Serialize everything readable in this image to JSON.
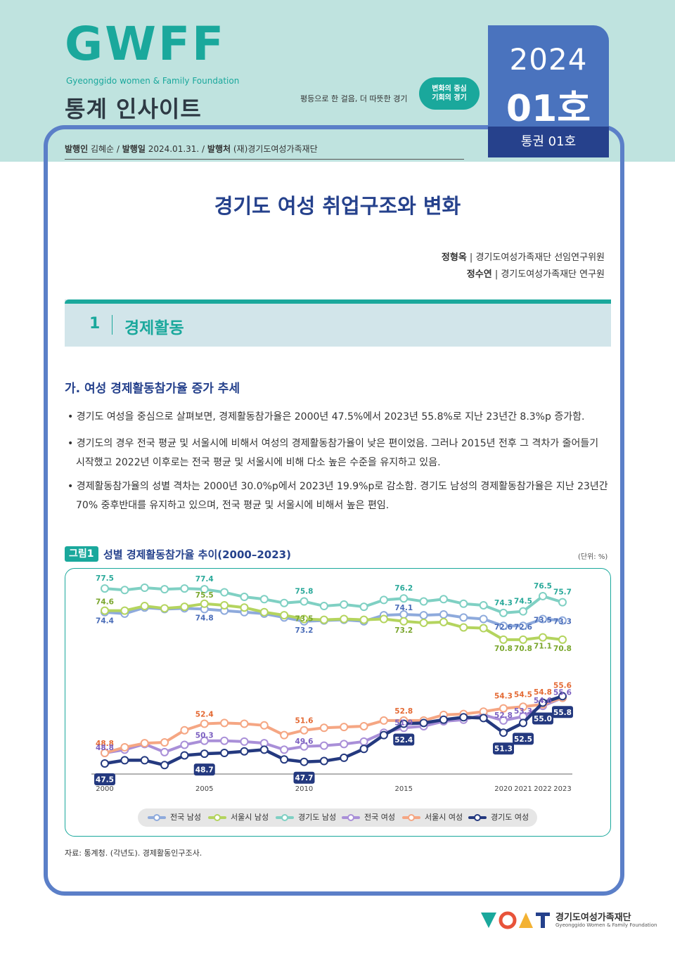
{
  "header": {
    "logo": "GWFF",
    "logo_sub": "Gyeonggido women & Family Foundation",
    "series_name": "통계 인사이트",
    "slogan": "평등으로 한 걸음, 더 따뜻한 경기",
    "slogan_badge_1": "변화의 중심",
    "slogan_badge_2": "기회의 경기",
    "issue_year": "2024",
    "issue_no": "01호",
    "issue_vol": "통권 01호"
  },
  "masthead": {
    "publisher_label": "발행인",
    "publisher": "김혜순",
    "date_label": "발행일",
    "date": "2024.01.31.",
    "org_label": "발행처",
    "org": "(재)경기도여성가족재단"
  },
  "title": "경기도 여성 취업구조와 변화",
  "authors": [
    {
      "name": "정형옥",
      "affil": "경기도여성가족재단 선임연구위원"
    },
    {
      "name": "정수연",
      "affil": "경기도여성가족재단 연구원"
    }
  ],
  "section": {
    "num": "1",
    "title": "경제활동"
  },
  "subsection": "가. 여성 경제활동참가율 증가 추세",
  "bullets": [
    "• 경기도 여성을 중심으로 살펴보면, 경제활동참가율은 2000년 47.5%에서 2023년 55.8%로 지난 23년간 8.3%p 증가함.",
    "• 경기도의 경우 전국 평균 및 서울시에 비해서 여성의 경제활동참가율이 낮은 편이었음. 그러나 2015년 전후 그 격차가 줄어들기 시작했고 2022년 이후로는 전국 평균 및 서울시에 비해 다소 높은 수준을 유지하고 있음.",
    "• 경제활동참가율의 성별 격차는 2000년 30.0%p에서 2023년 19.9%p로 감소함. 경기도 남성의 경제활동참가율은 지난 23년간 70% 중후반대를 유지하고 있으며, 전국 평균 및 서울시에 비해서 높은 편임."
  ],
  "figure": {
    "label": "그림1",
    "title": "성별 경제활동참가율 추이(2000–2023)",
    "unit": "(단위: %)"
  },
  "chart_data": {
    "type": "line",
    "title": "성별 경제활동참가율 추이(2000–2023)",
    "x": [
      2000,
      2001,
      2002,
      2003,
      2004,
      2005,
      2006,
      2007,
      2008,
      2009,
      2010,
      2011,
      2012,
      2013,
      2014,
      2015,
      2016,
      2017,
      2018,
      2019,
      2020,
      2021,
      2022,
      2023
    ],
    "x_tick_labels": [
      "2000",
      "2005",
      "2010",
      "2015",
      "2020",
      "2021",
      "2022",
      "2023"
    ],
    "series": [
      {
        "name": "전국 남성",
        "color": "#8eaadc",
        "values": [
          74.4,
          74.2,
          75.0,
          74.8,
          74.9,
          74.8,
          74.6,
          74.4,
          74.2,
          73.7,
          73.2,
          73.3,
          73.4,
          73.2,
          74.0,
          74.1,
          74.0,
          74.1,
          73.7,
          73.5,
          72.6,
          72.6,
          73.5,
          73.3
        ]
      },
      {
        "name": "서울시 남성",
        "color": "#b4d45e",
        "values": [
          74.6,
          74.6,
          75.2,
          74.9,
          75.1,
          75.5,
          75.3,
          75.0,
          74.4,
          74.0,
          73.5,
          73.4,
          73.5,
          73.4,
          73.5,
          73.2,
          73.0,
          73.1,
          72.4,
          72.3,
          70.8,
          70.8,
          71.1,
          70.8
        ]
      },
      {
        "name": "경기도 남성",
        "color": "#7fd0c3",
        "values": [
          77.5,
          77.3,
          77.6,
          77.4,
          77.5,
          77.4,
          77.0,
          76.4,
          76.1,
          75.6,
          75.8,
          75.2,
          75.4,
          75.1,
          76.0,
          76.2,
          75.8,
          76.1,
          75.5,
          75.3,
          74.3,
          74.5,
          76.5,
          75.7
        ]
      },
      {
        "name": "전국 여성",
        "color": "#a98fd8",
        "values": [
          48.8,
          49.2,
          49.9,
          48.9,
          49.8,
          50.3,
          50.3,
          50.2,
          50.0,
          49.2,
          49.6,
          49.7,
          49.9,
          50.2,
          51.3,
          51.9,
          52.1,
          52.7,
          52.9,
          53.5,
          52.8,
          53.3,
          54.6,
          55.6
        ]
      },
      {
        "name": "서울시 여성",
        "color": "#f5a683",
        "values": [
          48.8,
          49.5,
          50.0,
          50.1,
          51.6,
          52.4,
          52.5,
          52.4,
          52.2,
          51.0,
          51.6,
          51.9,
          52.0,
          52.1,
          52.8,
          52.8,
          52.8,
          53.5,
          53.6,
          53.9,
          54.3,
          54.5,
          54.8,
          55.6
        ]
      },
      {
        "name": "경기도 여성",
        "color": "#24397f",
        "values": [
          47.5,
          47.9,
          47.9,
          47.3,
          48.5,
          48.7,
          48.8,
          49.0,
          49.2,
          48.0,
          47.7,
          47.8,
          48.2,
          49.3,
          51.0,
          52.4,
          52.5,
          52.9,
          53.2,
          53.1,
          51.3,
          52.5,
          55.0,
          55.8
        ]
      }
    ],
    "data_labels": [
      {
        "series": 2,
        "x": 2000,
        "text": "77.5"
      },
      {
        "series": 1,
        "x": 2000,
        "text": "74.6"
      },
      {
        "series": 0,
        "x": 2000,
        "text": "74.4"
      },
      {
        "series": 2,
        "x": 2005,
        "text": "77.4"
      },
      {
        "series": 1,
        "x": 2005,
        "text": "75.5"
      },
      {
        "series": 0,
        "x": 2005,
        "text": "74.8"
      },
      {
        "series": 2,
        "x": 2010,
        "text": "75.8"
      },
      {
        "series": 1,
        "x": 2010,
        "text": "73.5"
      },
      {
        "series": 0,
        "x": 2010,
        "text": "73.2"
      },
      {
        "series": 2,
        "x": 2015,
        "text": "76.2"
      },
      {
        "series": 0,
        "x": 2015,
        "text": "74.1"
      },
      {
        "series": 1,
        "x": 2015,
        "text": "73.2"
      },
      {
        "series": 2,
        "x": 2020,
        "text": "74.3"
      },
      {
        "series": 0,
        "x": 2020,
        "text": "72.6"
      },
      {
        "series": 1,
        "x": 2020,
        "text": "70.8"
      },
      {
        "series": 2,
        "x": 2021,
        "text": "74.5"
      },
      {
        "series": 0,
        "x": 2021,
        "text": "72.6"
      },
      {
        "series": 1,
        "x": 2021,
        "text": "70.8"
      },
      {
        "series": 2,
        "x": 2022,
        "text": "76.5"
      },
      {
        "series": 0,
        "x": 2022,
        "text": "73.5"
      },
      {
        "series": 1,
        "x": 2022,
        "text": "71.1"
      },
      {
        "series": 2,
        "x": 2023,
        "text": "75.7"
      },
      {
        "series": 0,
        "x": 2023,
        "text": "73.3"
      },
      {
        "series": 1,
        "x": 2023,
        "text": "70.8"
      },
      {
        "series": 4,
        "x": 2000,
        "text": "48.8"
      },
      {
        "series": 3,
        "x": 2000,
        "text": "48.8"
      },
      {
        "series": 5,
        "x": 2000,
        "text": "47.5",
        "boxed": true
      },
      {
        "series": 4,
        "x": 2005,
        "text": "52.4"
      },
      {
        "series": 3,
        "x": 2005,
        "text": "50.3"
      },
      {
        "series": 5,
        "x": 2005,
        "text": "48.7",
        "boxed": true
      },
      {
        "series": 4,
        "x": 2010,
        "text": "51.6"
      },
      {
        "series": 3,
        "x": 2010,
        "text": "49.6"
      },
      {
        "series": 5,
        "x": 2010,
        "text": "47.7",
        "boxed": true
      },
      {
        "series": 4,
        "x": 2015,
        "text": "52.8"
      },
      {
        "series": 3,
        "x": 2015,
        "text": "51.9"
      },
      {
        "series": 5,
        "x": 2015,
        "text": "52.4",
        "boxed": true
      },
      {
        "series": 4,
        "x": 2020,
        "text": "54.3"
      },
      {
        "series": 3,
        "x": 2020,
        "text": "52.8"
      },
      {
        "series": 5,
        "x": 2020,
        "text": "51.3",
        "boxed": true
      },
      {
        "series": 4,
        "x": 2021,
        "text": "54.5"
      },
      {
        "series": 3,
        "x": 2021,
        "text": "53.3"
      },
      {
        "series": 5,
        "x": 2021,
        "text": "52.5",
        "boxed": true
      },
      {
        "series": 4,
        "x": 2022,
        "text": "54.8"
      },
      {
        "series": 3,
        "x": 2022,
        "text": "54.6"
      },
      {
        "series": 5,
        "x": 2022,
        "text": "55.0",
        "boxed": true
      },
      {
        "series": 4,
        "x": 2023,
        "text": "55.6"
      },
      {
        "series": 3,
        "x": 2023,
        "text": "55.6"
      },
      {
        "series": 5,
        "x": 2023,
        "text": "55.8",
        "boxed": true
      }
    ],
    "legend_placement": "bottom",
    "grid": false
  },
  "source": "자료: 통계청. (각년도). 경제활동인구조사.",
  "footer": {
    "org_name": "경기도여성가족재단",
    "org_sub": "Gyeonggido Women & Family Foundation"
  }
}
